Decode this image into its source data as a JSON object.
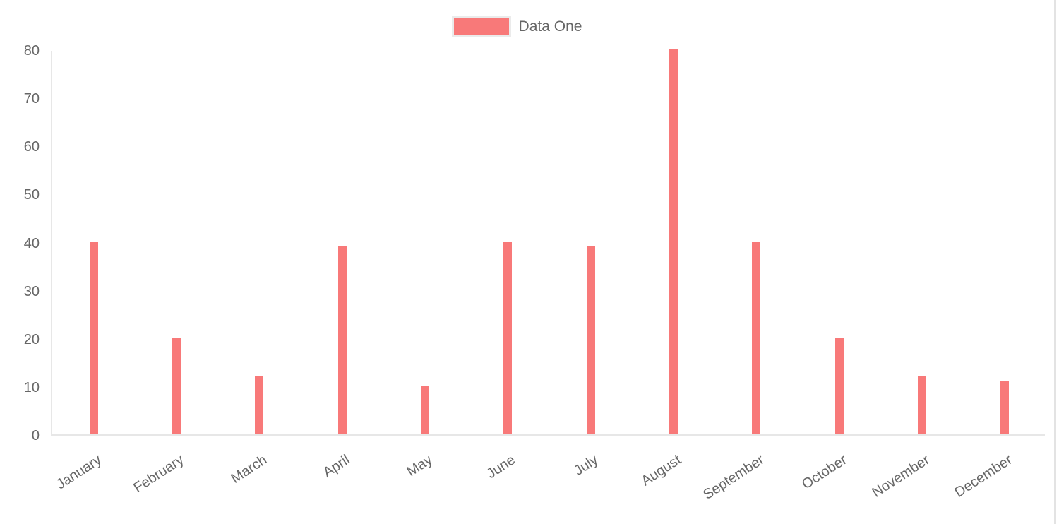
{
  "colors": {
    "bar": "#f87979",
    "tick_text": "#666666",
    "axis_line": "#e7e7e7",
    "legend_text": "#666666",
    "legend_swatch_border": "#ebebeb",
    "page_right_border": "#e3e3e3",
    "background": "#ffffff"
  },
  "legend": {
    "position": "top",
    "label": "Data One"
  },
  "chart_data": {
    "type": "bar",
    "title": "",
    "xlabel": "",
    "ylabel": "",
    "categories": [
      "January",
      "February",
      "March",
      "April",
      "May",
      "June",
      "July",
      "August",
      "September",
      "October",
      "November",
      "December"
    ],
    "series": [
      {
        "name": "Data One",
        "color": "#f87979",
        "values": [
          40,
          20,
          12,
          39,
          10,
          40,
          39,
          80,
          40,
          20,
          12,
          11
        ]
      }
    ],
    "ylim": [
      0,
      80
    ],
    "yticks": [
      0,
      10,
      20,
      30,
      40,
      50,
      60,
      70,
      80
    ],
    "grid": false,
    "legend_position": "top",
    "x_tick_rotation_deg": -33
  }
}
